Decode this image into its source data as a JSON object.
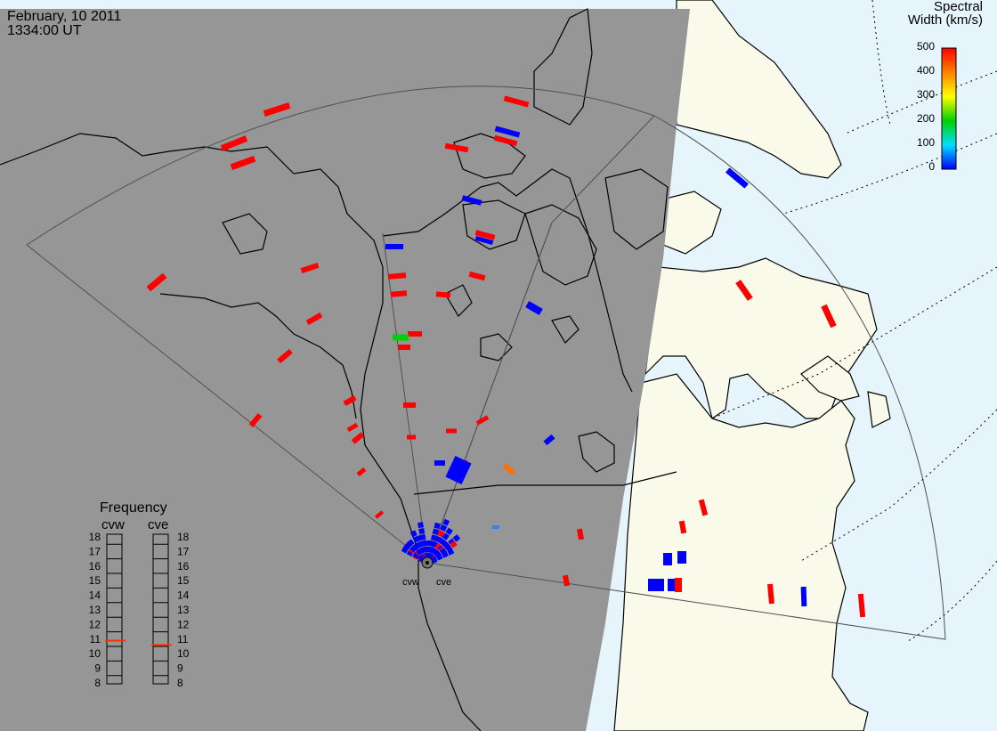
{
  "header": {
    "date": "February, 10 2011",
    "time": "1334:00 UT"
  },
  "spectral_legend": {
    "title_line1": "Spectral",
    "title_line2": "Width (km/s)",
    "ticks": [
      "500",
      "400",
      "300",
      "200",
      "100",
      "0"
    ],
    "colors": [
      "#0000ff",
      "#00e0ff",
      "#00d000",
      "#ffff00",
      "#ff8000",
      "#ff0000"
    ]
  },
  "frequency_panel": {
    "title": "Frequency",
    "radar_left": "cvw",
    "radar_right": "cve",
    "ticks": [
      "18",
      "17",
      "16",
      "15",
      "14",
      "13",
      "12",
      "11",
      "10",
      "9",
      "8"
    ],
    "cvw_freq": 10.9,
    "cve_freq": 10.6,
    "marker_color": "#ff3000"
  },
  "radar_labels": {
    "west": "cvw",
    "east": "cve"
  },
  "colors": {
    "night": "#969696",
    "land_day": "#fafaea",
    "ocean_day": "#e6f4fb",
    "echo_high": "#ff0000",
    "echo_low": "#0000ff",
    "echo_green": "#00d000",
    "echo_orange": "#ff7000"
  }
}
